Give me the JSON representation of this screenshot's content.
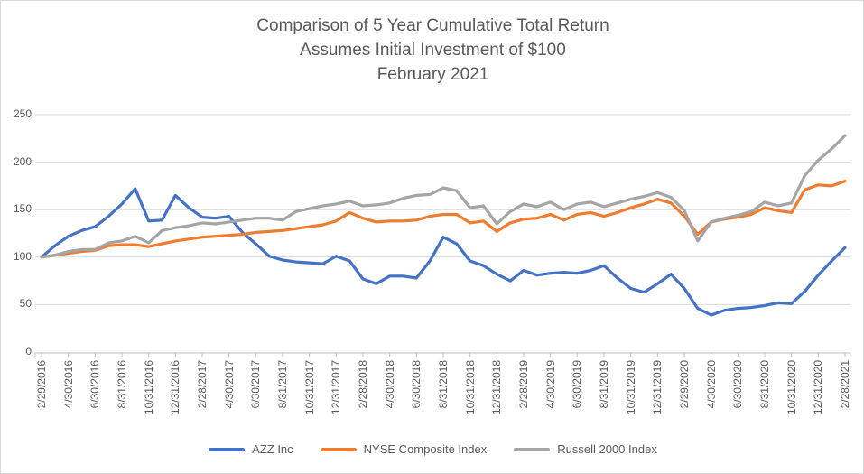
{
  "window": {
    "background": "#ffffff",
    "border_color": "#d9d9d9"
  },
  "chart_data": {
    "type": "line",
    "title_lines": [
      "Comparison of 5 Year Cumulative Total Return",
      "Assumes Initial Investment of $100",
      "February 2021"
    ],
    "x": [
      "2/29/2016",
      "3/31/2016",
      "4/30/2016",
      "5/31/2016",
      "6/30/2016",
      "7/31/2016",
      "8/31/2016",
      "9/30/2016",
      "10/31/2016",
      "11/30/2016",
      "12/31/2016",
      "1/31/2017",
      "2/28/2017",
      "3/31/2017",
      "4/30/2017",
      "5/31/2017",
      "6/30/2017",
      "7/31/2017",
      "8/31/2017",
      "9/30/2017",
      "10/31/2017",
      "11/30/2017",
      "12/31/2017",
      "1/31/2018",
      "2/28/2018",
      "3/31/2018",
      "4/30/2018",
      "5/31/2018",
      "6/30/2018",
      "7/31/2018",
      "8/31/2018",
      "9/30/2018",
      "10/31/2018",
      "11/30/2018",
      "12/31/2018",
      "1/31/2019",
      "2/28/2019",
      "3/31/2019",
      "4/30/2019",
      "5/31/2019",
      "6/30/2019",
      "7/31/2019",
      "8/31/2019",
      "9/30/2019",
      "10/31/2019",
      "11/30/2019",
      "12/31/2019",
      "1/31/2020",
      "2/29/2020",
      "3/31/2020",
      "4/30/2020",
      "5/31/2020",
      "6/30/2020",
      "7/31/2020",
      "8/31/2020",
      "9/30/2020",
      "10/31/2020",
      "11/30/2020",
      "12/31/2020",
      "1/31/2021",
      "2/28/2021"
    ],
    "x_tick_every": 2,
    "yticks": [
      0,
      50,
      100,
      150,
      200,
      250
    ],
    "ylim": [
      0,
      250
    ],
    "grid": "horizontal",
    "legend_position": "bottom",
    "axis_color": "#BFBFBF",
    "gridline_color": "#D9D9D9",
    "label_color": "#595959",
    "series": [
      {
        "name": "AZZ Inc",
        "color": "#4472C4",
        "values": [
          100,
          112,
          122,
          128,
          132,
          143,
          156,
          172,
          138,
          139,
          165,
          152,
          142,
          141,
          143,
          126,
          114,
          101,
          97,
          95,
          94,
          93,
          101,
          96,
          77,
          72,
          80,
          80,
          78,
          96,
          121,
          114,
          96,
          91,
          82,
          75,
          86,
          81,
          83,
          84,
          83,
          86,
          91,
          78,
          67,
          63,
          72,
          82,
          67,
          46,
          39,
          44,
          46,
          47,
          49,
          52,
          51,
          64,
          81,
          96,
          110
        ]
      },
      {
        "name": "NYSE Composite Index",
        "color": "#ED7D31",
        "values": [
          100,
          102,
          104,
          106,
          107,
          112,
          113,
          113,
          111,
          114,
          117,
          119,
          121,
          122,
          123,
          124,
          126,
          127,
          128,
          130,
          132,
          134,
          138,
          147,
          141,
          137,
          138,
          138,
          139,
          143,
          145,
          145,
          136,
          138,
          127,
          136,
          140,
          141,
          145,
          139,
          145,
          147,
          143,
          147,
          152,
          156,
          161,
          157,
          143,
          124,
          137,
          140,
          142,
          145,
          152,
          149,
          147,
          171,
          176,
          175,
          180
        ]
      },
      {
        "name": "Russell 2000 Index",
        "color": "#A5A5A5",
        "values": [
          100,
          102,
          106,
          108,
          108,
          115,
          117,
          122,
          115,
          128,
          131,
          133,
          136,
          135,
          137,
          139,
          141,
          141,
          139,
          148,
          151,
          154,
          156,
          159,
          154,
          155,
          157,
          162,
          165,
          166,
          173,
          170,
          152,
          154,
          135,
          148,
          156,
          153,
          158,
          150,
          156,
          158,
          153,
          157,
          161,
          164,
          168,
          163,
          149,
          117,
          137,
          141,
          144,
          148,
          158,
          154,
          157,
          186,
          202,
          214,
          228
        ]
      }
    ]
  }
}
